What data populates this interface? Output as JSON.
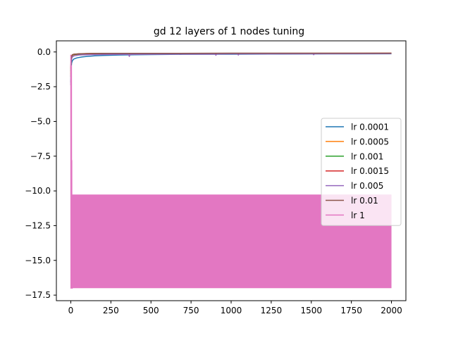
{
  "chart_data": {
    "type": "line",
    "title": "gd 12 layers of 1 nodes tuning",
    "xlabel": "",
    "ylabel": "",
    "xlim": [
      -90,
      2090
    ],
    "ylim": [
      -17.9,
      0.8
    ],
    "xticks": [
      0,
      250,
      500,
      750,
      1000,
      1250,
      1500,
      1750,
      2000
    ],
    "yticks": [
      0.0,
      -2.5,
      -5.0,
      -7.5,
      -10.0,
      -12.5,
      -15.0,
      -17.5
    ],
    "xtick_labels": [
      "0",
      "250",
      "500",
      "750",
      "1000",
      "1250",
      "1500",
      "1750",
      "2000"
    ],
    "ytick_labels": [
      "0.0",
      "−2.5",
      "−5.0",
      "−7.5",
      "−10.0",
      "−12.5",
      "−15.0",
      "−17.5"
    ],
    "grid": false,
    "legend_position": "center-right",
    "series": [
      {
        "name": "lr 0.0001",
        "color": "#1f77b4",
        "x": [
          0,
          2,
          5,
          10,
          20,
          40,
          70,
          100,
          150,
          200,
          300,
          400,
          500,
          700,
          1000,
          1300,
          1600,
          2000
        ],
        "y": [
          -2.2,
          -1.2,
          -0.8,
          -0.62,
          -0.5,
          -0.42,
          -0.36,
          -0.32,
          -0.28,
          -0.25,
          -0.22,
          -0.2,
          -0.19,
          -0.17,
          -0.16,
          -0.15,
          -0.14,
          -0.13
        ]
      },
      {
        "name": "lr 0.0005",
        "color": "#ff7f0e",
        "x": [
          0,
          2,
          5,
          10,
          20,
          50,
          100,
          200,
          500,
          1000,
          2000
        ],
        "y": [
          -1.6,
          -0.6,
          -0.35,
          -0.25,
          -0.2,
          -0.16,
          -0.14,
          -0.13,
          -0.12,
          -0.11,
          -0.1
        ]
      },
      {
        "name": "lr 0.001",
        "color": "#2ca02c",
        "x": [
          0,
          2,
          5,
          10,
          20,
          50,
          100,
          200,
          500,
          1000,
          2000
        ],
        "y": [
          -1.4,
          -0.5,
          -0.3,
          -0.22,
          -0.18,
          -0.15,
          -0.13,
          -0.12,
          -0.11,
          -0.1,
          -0.1
        ]
      },
      {
        "name": "lr 0.0015",
        "color": "#d62728",
        "x": [
          0,
          2,
          5,
          10,
          20,
          50,
          100,
          200,
          500,
          1000,
          2000
        ],
        "y": [
          -1.2,
          -0.45,
          -0.28,
          -0.2,
          -0.16,
          -0.14,
          -0.12,
          -0.11,
          -0.1,
          -0.1,
          -0.09
        ]
      },
      {
        "name": "lr 0.005",
        "color": "#9467bd",
        "x": [
          0,
          2,
          5,
          10,
          20,
          50,
          100,
          200,
          300,
          360,
          365,
          370,
          500,
          900,
          905,
          910,
          1000,
          1040,
          1045,
          1050,
          1500,
          1510,
          1515,
          1520,
          2000
        ],
        "y": [
          -2.4,
          -0.9,
          -0.5,
          -0.35,
          -0.28,
          -0.22,
          -0.2,
          -0.18,
          -0.17,
          -0.17,
          -0.32,
          -0.17,
          -0.16,
          -0.15,
          -0.24,
          -0.15,
          -0.14,
          -0.14,
          -0.22,
          -0.14,
          -0.13,
          -0.13,
          -0.2,
          -0.13,
          -0.12
        ]
      },
      {
        "name": "lr 0.01",
        "color": "#8c564b",
        "x": [
          0,
          2,
          5,
          10,
          20,
          50,
          100,
          200,
          500,
          1000,
          2000
        ],
        "y": [
          -1.8,
          -0.55,
          -0.3,
          -0.2,
          -0.16,
          -0.13,
          -0.11,
          -0.1,
          -0.1,
          -0.09,
          -0.09
        ]
      },
      {
        "name": "lr 1",
        "color": "#e377c2",
        "x": [
          0,
          1,
          2,
          3,
          4,
          5,
          6,
          7,
          8,
          9,
          10,
          2000
        ],
        "y": [
          -0.2,
          -17.0,
          -2.0,
          -16.5,
          -1.0,
          -15.0,
          -7.8,
          -17.0,
          -10.3,
          -17.0,
          -10.3,
          -10.3
        ],
        "band": {
          "x_start": 10,
          "x_end": 2000,
          "y_top": -10.3,
          "y_bottom": -17.0
        }
      }
    ]
  }
}
